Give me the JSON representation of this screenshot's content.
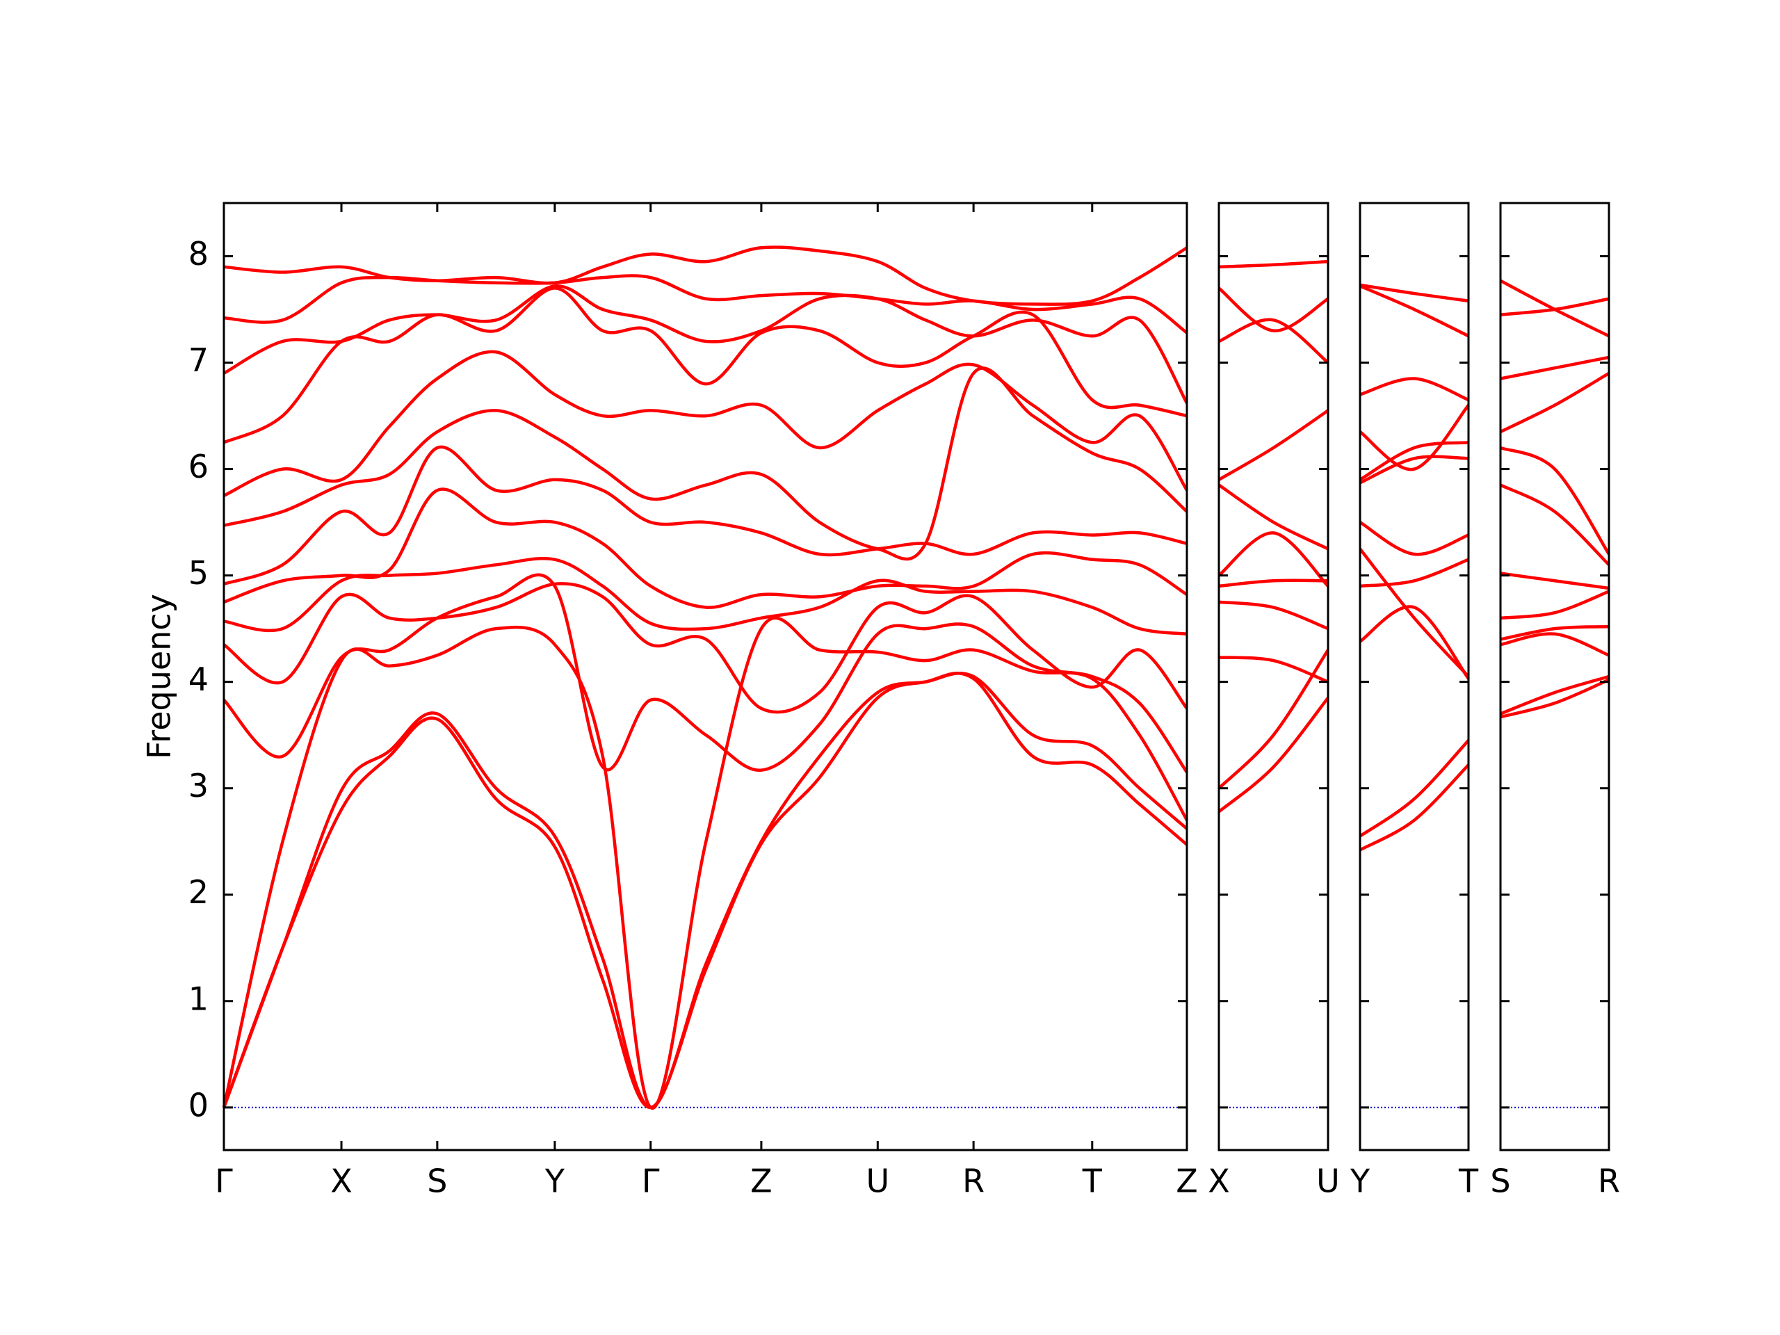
{
  "chart_data": [
    {
      "type": "line",
      "y_label": "Frequency",
      "color": "#ff0000",
      "show_ytick_labels": true,
      "hline": {
        "value": 0,
        "color": "#0000cc"
      },
      "xlim": [
        0,
        8.44
      ],
      "ylim": [
        -0.4,
        8.5
      ],
      "xticks": [
        {
          "value": 0,
          "label": "Γ"
        },
        {
          "value": 1.03,
          "label": "X"
        },
        {
          "value": 1.87,
          "label": "S"
        },
        {
          "value": 2.9,
          "label": "Y"
        },
        {
          "value": 3.74,
          "label": "Γ"
        },
        {
          "value": 4.71,
          "label": "Z"
        },
        {
          "value": 5.73,
          "label": "U"
        },
        {
          "value": 6.57,
          "label": "R"
        },
        {
          "value": 7.61,
          "label": "T"
        },
        {
          "value": 8.44,
          "label": "Z"
        }
      ],
      "yticks": [
        0,
        1,
        2,
        3,
        4,
        5,
        6,
        7,
        8
      ],
      "x": [
        0,
        0.515,
        1.03,
        1.45,
        1.87,
        2.385,
        2.9,
        3.32,
        3.74,
        4.225,
        4.71,
        5.22,
        5.73,
        6.15,
        6.57,
        7.09,
        7.61,
        8.025,
        8.44
      ],
      "series": [
        {
          "values": [
            0,
            1.5,
            2.8,
            3.3,
            3.65,
            2.9,
            2.45,
            1.2,
            0,
            1.3,
            2.48,
            3.1,
            3.85,
            4.0,
            4.03,
            3.3,
            3.22,
            2.85,
            2.47
          ]
        },
        {
          "values": [
            0,
            1.5,
            2.98,
            3.35,
            3.7,
            3.0,
            2.55,
            1.4,
            0,
            1.35,
            2.5,
            3.3,
            3.9,
            4.0,
            4.05,
            3.5,
            3.4,
            3.0,
            2.62
          ]
        },
        {
          "values": [
            0,
            2.5,
            4.2,
            4.15,
            4.25,
            4.5,
            4.35,
            3.3,
            0,
            2.5,
            4.5,
            4.3,
            4.28,
            4.2,
            4.3,
            4.1,
            4.03,
            3.5,
            2.7
          ]
        },
        {
          "values": [
            3.83,
            3.3,
            4.23,
            4.3,
            4.6,
            4.8,
            4.9,
            3.2,
            3.83,
            3.5,
            3.17,
            3.6,
            4.45,
            4.5,
            4.52,
            4.15,
            4.05,
            3.8,
            3.15
          ]
        },
        {
          "values": [
            4.35,
            4.0,
            4.8,
            4.6,
            4.6,
            4.7,
            4.92,
            4.8,
            4.35,
            4.4,
            3.75,
            3.9,
            4.7,
            4.65,
            4.8,
            4.3,
            3.95,
            4.3,
            3.75
          ]
        },
        {
          "values": [
            4.57,
            4.5,
            4.95,
            5.0,
            5.02,
            5.1,
            5.15,
            4.9,
            4.55,
            4.5,
            4.6,
            4.7,
            4.95,
            4.85,
            4.85,
            4.85,
            4.7,
            4.5,
            4.45
          ]
        },
        {
          "values": [
            4.75,
            4.95,
            5.0,
            5.05,
            5.8,
            5.5,
            5.5,
            5.3,
            4.9,
            4.7,
            4.82,
            4.8,
            4.9,
            4.9,
            4.9,
            5.2,
            5.15,
            5.1,
            4.82
          ]
        },
        {
          "values": [
            4.92,
            5.1,
            5.6,
            5.4,
            6.2,
            5.8,
            5.9,
            5.8,
            5.5,
            5.5,
            5.4,
            5.2,
            5.25,
            5.3,
            5.2,
            5.4,
            5.38,
            5.4,
            5.3
          ]
        },
        {
          "values": [
            5.47,
            5.6,
            5.85,
            5.95,
            6.35,
            6.55,
            6.3,
            6.0,
            5.72,
            5.85,
            5.95,
            5.5,
            5.25,
            5.3,
            6.9,
            6.5,
            6.15,
            6.0,
            5.6
          ]
        },
        {
          "values": [
            5.75,
            6.0,
            5.9,
            6.4,
            6.85,
            7.1,
            6.7,
            6.5,
            6.55,
            6.5,
            6.6,
            6.2,
            6.55,
            6.8,
            6.98,
            6.6,
            6.25,
            6.5,
            5.8
          ]
        },
        {
          "values": [
            6.25,
            6.5,
            7.2,
            7.2,
            7.45,
            7.3,
            7.7,
            7.3,
            7.3,
            6.8,
            7.28,
            7.3,
            7.0,
            7.0,
            7.25,
            7.45,
            6.65,
            6.6,
            6.5
          ]
        },
        {
          "values": [
            6.9,
            7.2,
            7.2,
            7.4,
            7.45,
            7.4,
            7.72,
            7.5,
            7.4,
            7.2,
            7.3,
            7.6,
            7.6,
            7.4,
            7.25,
            7.4,
            7.25,
            7.4,
            6.62
          ]
        },
        {
          "values": [
            7.42,
            7.4,
            7.75,
            7.8,
            7.77,
            7.75,
            7.75,
            7.8,
            7.8,
            7.6,
            7.63,
            7.65,
            7.6,
            7.55,
            7.58,
            7.5,
            7.55,
            7.6,
            7.28
          ]
        },
        {
          "values": [
            7.9,
            7.85,
            7.9,
            7.8,
            7.77,
            7.8,
            7.75,
            7.9,
            8.02,
            7.95,
            8.08,
            8.05,
            7.95,
            7.7,
            7.58,
            7.55,
            7.58,
            7.8,
            8.08
          ]
        }
      ]
    },
    {
      "type": "line",
      "color": "#ff0000",
      "show_ytick_labels": false,
      "hline": {
        "value": 0,
        "color": "#0000cc"
      },
      "xlim": [
        0,
        0.96
      ],
      "ylim": [
        -0.4,
        8.5
      ],
      "xticks": [
        {
          "value": 0,
          "label": "X"
        },
        {
          "value": 0.96,
          "label": "U"
        }
      ],
      "yticks": [
        0,
        1,
        2,
        3,
        4,
        5,
        6,
        7,
        8
      ],
      "x": [
        0,
        0.48,
        0.96
      ],
      "series": [
        {
          "values": [
            2.78,
            3.2,
            3.85
          ]
        },
        {
          "values": [
            3.0,
            3.5,
            4.3
          ]
        },
        {
          "values": [
            4.23,
            4.2,
            4.0
          ]
        },
        {
          "values": [
            4.75,
            4.7,
            4.5
          ]
        },
        {
          "values": [
            4.9,
            4.95,
            4.95
          ]
        },
        {
          "values": [
            5.0,
            5.4,
            4.9
          ]
        },
        {
          "values": [
            5.85,
            5.5,
            5.25
          ]
        },
        {
          "values": [
            5.9,
            6.2,
            6.55
          ]
        },
        {
          "values": [
            7.2,
            7.4,
            7.0
          ]
        },
        {
          "values": [
            7.7,
            7.3,
            7.6
          ]
        },
        {
          "values": [
            7.9,
            7.92,
            7.95
          ]
        }
      ]
    },
    {
      "type": "line",
      "color": "#ff0000",
      "show_ytick_labels": false,
      "hline": {
        "value": 0,
        "color": "#0000cc"
      },
      "xlim": [
        0,
        0.95
      ],
      "ylim": [
        -0.4,
        8.5
      ],
      "xticks": [
        {
          "value": 0,
          "label": "Y"
        },
        {
          "value": 0.95,
          "label": "T"
        }
      ],
      "yticks": [
        0,
        1,
        2,
        3,
        4,
        5,
        6,
        7,
        8
      ],
      "x": [
        0,
        0.475,
        0.95
      ],
      "series": [
        {
          "values": [
            2.42,
            2.7,
            3.22
          ]
        },
        {
          "values": [
            2.55,
            2.9,
            3.45
          ]
        },
        {
          "values": [
            4.38,
            4.7,
            4.03
          ]
        },
        {
          "values": [
            4.9,
            4.95,
            5.15
          ]
        },
        {
          "values": [
            5.25,
            4.6,
            4.05
          ]
        },
        {
          "values": [
            5.5,
            5.2,
            5.38
          ]
        },
        {
          "values": [
            5.87,
            6.1,
            6.1
          ]
        },
        {
          "values": [
            5.9,
            6.2,
            6.25
          ]
        },
        {
          "values": [
            6.35,
            6.0,
            6.6
          ]
        },
        {
          "values": [
            6.7,
            6.85,
            6.65
          ]
        },
        {
          "values": [
            7.72,
            7.5,
            7.25
          ]
        },
        {
          "values": [
            7.73,
            7.65,
            7.58
          ]
        }
      ]
    },
    {
      "type": "line",
      "color": "#ff0000",
      "show_ytick_labels": false,
      "hline": {
        "value": 0,
        "color": "#0000cc"
      },
      "xlim": [
        0,
        0.95
      ],
      "ylim": [
        -0.4,
        8.5
      ],
      "xticks": [
        {
          "value": 0,
          "label": "S"
        },
        {
          "value": 0.95,
          "label": "R"
        }
      ],
      "yticks": [
        0,
        1,
        2,
        3,
        4,
        5,
        6,
        7,
        8
      ],
      "x": [
        0,
        0.475,
        0.95
      ],
      "series": [
        {
          "values": [
            3.67,
            3.8,
            4.02
          ]
        },
        {
          "values": [
            3.7,
            3.9,
            4.05
          ]
        },
        {
          "values": [
            4.35,
            4.45,
            4.25
          ]
        },
        {
          "values": [
            4.4,
            4.5,
            4.52
          ]
        },
        {
          "values": [
            4.6,
            4.65,
            4.85
          ]
        },
        {
          "values": [
            5.02,
            4.95,
            4.88
          ]
        },
        {
          "values": [
            5.85,
            5.6,
            5.1
          ]
        },
        {
          "values": [
            6.2,
            6.0,
            5.2
          ]
        },
        {
          "values": [
            6.35,
            6.6,
            6.9
          ]
        },
        {
          "values": [
            6.85,
            6.95,
            7.05
          ]
        },
        {
          "values": [
            7.45,
            7.5,
            7.6
          ]
        },
        {
          "values": [
            7.77,
            7.5,
            7.25
          ]
        }
      ]
    }
  ]
}
